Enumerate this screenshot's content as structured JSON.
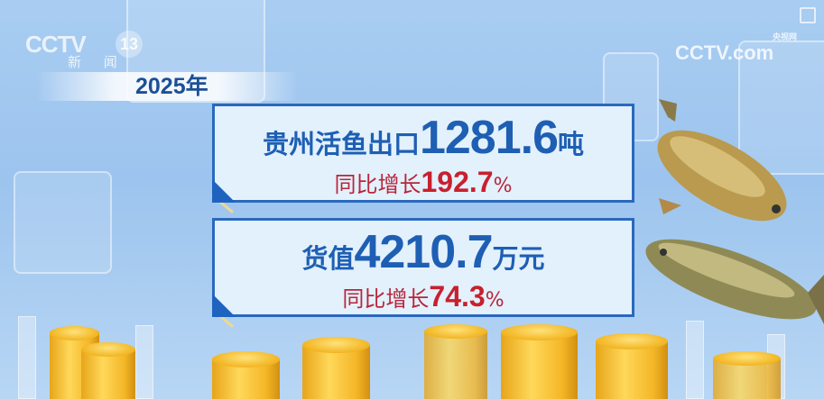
{
  "channel_logo": {
    "brand": "CCTV",
    "channel": "13",
    "name": "新 闻"
  },
  "watermark": {
    "brand": "CCTV.com",
    "name": "央视网"
  },
  "year": "2025年",
  "card1": {
    "label": "贵州活鱼出口",
    "value": "1281.6",
    "unit": "吨",
    "growth_label": "同比增长",
    "growth_value": "192.7",
    "growth_unit": "%"
  },
  "card2": {
    "label": "货值",
    "value": "4210.7",
    "unit": "万元",
    "growth_label": "同比增长",
    "growth_value": "74.3",
    "growth_unit": "%"
  },
  "colors": {
    "primary_blue": "#1e5fb4",
    "growth_red": "#c8202e",
    "coin_gold": "#f2b522"
  }
}
